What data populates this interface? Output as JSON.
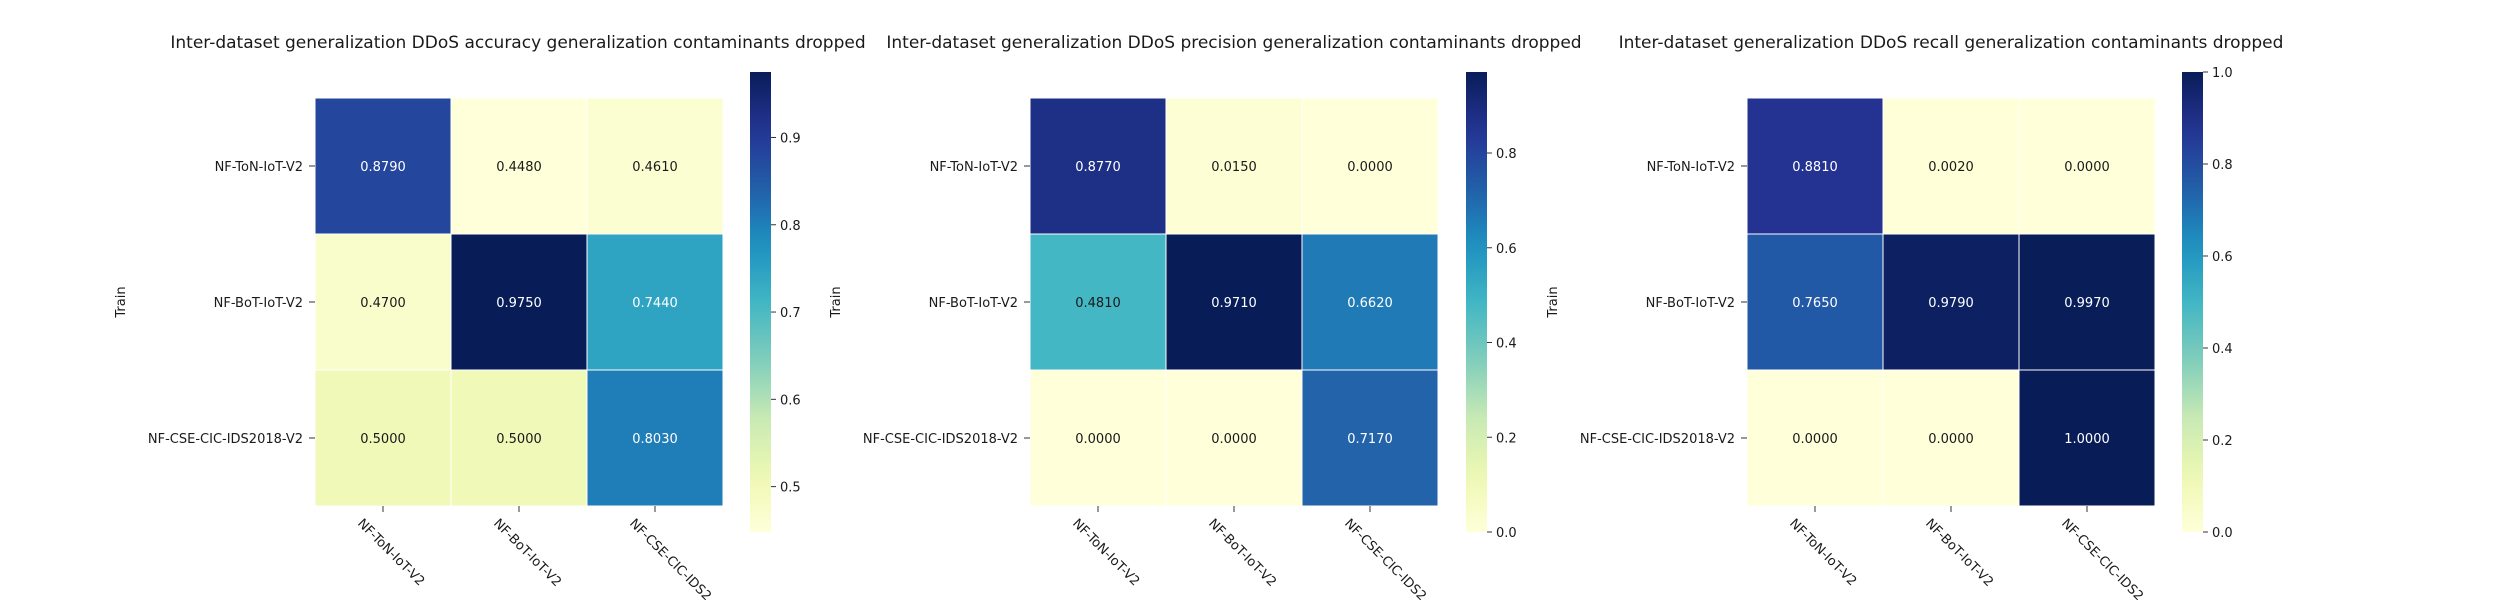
{
  "chart_data": [
    {
      "type": "heatmap",
      "title": "Inter-dataset generalization DDoS accuracy generalization contaminants dropped",
      "ylabel": "Train",
      "xlabel": "",
      "rows": [
        "NF-ToN-IoT-V2",
        "NF-BoT-IoT-V2",
        "NF-CSE-CIC-IDS2018-V2"
      ],
      "columns": [
        "NF-ToN-IoT-V2",
        "NF-BoT-IoT-V2",
        "NF-CSE-CIC-IDS2"
      ],
      "values": [
        [
          0.879,
          0.448,
          0.461
        ],
        [
          0.47,
          0.975,
          0.744
        ],
        [
          0.5,
          0.5,
          0.803
        ]
      ],
      "cell_labels": [
        [
          "0.8790",
          "0.4480",
          "0.4610"
        ],
        [
          "0.4700",
          "0.9750",
          "0.7440"
        ],
        [
          "0.5000",
          "0.5000",
          "0.8030"
        ]
      ],
      "colorbar": {
        "range": [
          0.448,
          0.975
        ],
        "ticks": [
          0.5,
          0.6,
          0.7,
          0.8,
          0.9
        ],
        "tick_labels": [
          "0.5",
          "0.6",
          "0.7",
          "0.8",
          "0.9"
        ],
        "colormap": "YlGnBu"
      }
    },
    {
      "type": "heatmap",
      "title": "Inter-dataset generalization DDoS precision generalization contaminants dropped",
      "ylabel": "Train",
      "xlabel": "",
      "rows": [
        "NF-ToN-IoT-V2",
        "NF-BoT-IoT-V2",
        "NF-CSE-CIC-IDS2018-V2"
      ],
      "columns": [
        "NF-ToN-IoT-V2",
        "NF-BoT-IoT-V2",
        "NF-CSE-CIC-IDS2"
      ],
      "values": [
        [
          0.877,
          0.015,
          0.0
        ],
        [
          0.481,
          0.971,
          0.662
        ],
        [
          0.0,
          0.0,
          0.717
        ]
      ],
      "cell_labels": [
        [
          "0.8770",
          "0.0150",
          "0.0000"
        ],
        [
          "0.4810",
          "0.9710",
          "0.6620"
        ],
        [
          "0.0000",
          "0.0000",
          "0.7170"
        ]
      ],
      "colorbar": {
        "range": [
          0.0,
          0.971
        ],
        "ticks": [
          0.0,
          0.2,
          0.4,
          0.6,
          0.8
        ],
        "tick_labels": [
          "0.0",
          "0.2",
          "0.4",
          "0.6",
          "0.8"
        ],
        "colormap": "YlGnBu"
      }
    },
    {
      "type": "heatmap",
      "title": "Inter-dataset generalization DDoS recall generalization contaminants dropped",
      "ylabel": "Train",
      "xlabel": "",
      "rows": [
        "NF-ToN-IoT-V2",
        "NF-BoT-IoT-V2",
        "NF-CSE-CIC-IDS2018-V2"
      ],
      "columns": [
        "NF-ToN-IoT-V2",
        "NF-BoT-IoT-V2",
        "NF-CSE-CIC-IDS2"
      ],
      "values": [
        [
          0.881,
          0.002,
          0.0
        ],
        [
          0.765,
          0.979,
          0.997
        ],
        [
          0.0,
          0.0,
          1.0
        ]
      ],
      "cell_labels": [
        [
          "0.8810",
          "0.0020",
          "0.0000"
        ],
        [
          "0.7650",
          "0.9790",
          "0.9970"
        ],
        [
          "0.0000",
          "0.0000",
          "1.0000"
        ]
      ],
      "colorbar": {
        "range": [
          0.0,
          1.0
        ],
        "ticks": [
          0.0,
          0.2,
          0.4,
          0.6,
          0.8,
          1.0
        ],
        "tick_labels": [
          "0.0",
          "0.2",
          "0.4",
          "0.6",
          "0.8",
          "1.0"
        ],
        "colormap": "YlGnBu"
      }
    }
  ]
}
